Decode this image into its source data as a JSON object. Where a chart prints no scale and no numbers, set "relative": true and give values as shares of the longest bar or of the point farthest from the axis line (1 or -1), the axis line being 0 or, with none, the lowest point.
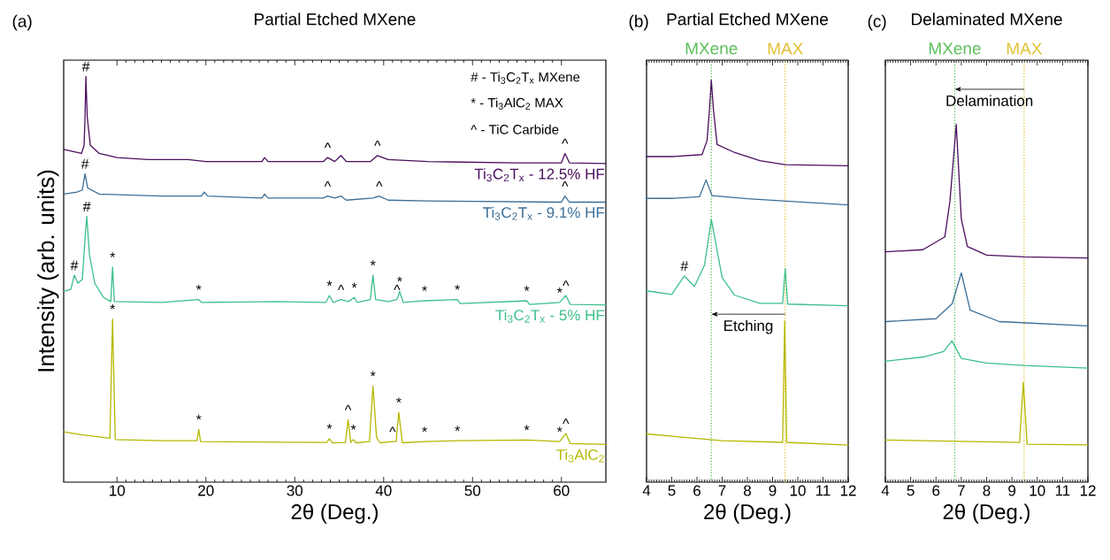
{
  "chart_data": [
    {
      "type": "line",
      "relative": true,
      "title": "Partial Etched MXene",
      "xlabel": "2θ (Deg.)",
      "ylabel": "Intensity (arb. units)",
      "xlim": [
        4,
        65
      ],
      "xticks": [
        10,
        20,
        30,
        40,
        50,
        60
      ],
      "tick_labels": "x",
      "annotations": [
        "(a)",
        "# - Ti$_{3}$C$_{2}$T$_{x}$ MXene",
        "* - Ti$_{3}$AlC$_{2}$ MAX",
        "^ - TiC Carbide",
        {
          "text": "#",
          "x": 6.5,
          "y": 1.0
        },
        {
          "text": "^",
          "x": 33.7,
          "y": 0.8
        },
        {
          "text": "^",
          "x": 39.3,
          "y": 0.805
        },
        {
          "text": "^",
          "x": 60.4,
          "y": 0.81
        },
        {
          "text": "#",
          "x": 6.4,
          "y": 0.76
        },
        {
          "text": "^",
          "x": 33.7,
          "y": 0.705
        },
        {
          "text": "^",
          "x": 39.5,
          "y": 0.705
        },
        {
          "text": "^",
          "x": 60.4,
          "y": 0.705
        },
        {
          "text": "#",
          "x": 5.2,
          "y": 0.51
        },
        {
          "text": "#",
          "x": 6.6,
          "y": 0.655
        },
        {
          "text": "*",
          "x": 9.5,
          "y": 0.53
        },
        {
          "text": "*",
          "x": 19.2,
          "y": 0.45
        },
        {
          "text": "*",
          "x": 33.9,
          "y": 0.46
        },
        {
          "text": "^",
          "x": 35.2,
          "y": 0.45
        },
        {
          "text": "*",
          "x": 36.7,
          "y": 0.455
        },
        {
          "text": "*",
          "x": 38.8,
          "y": 0.51
        },
        {
          "text": "^",
          "x": 41.5,
          "y": 0.45
        },
        {
          "text": "*",
          "x": 41.8,
          "y": 0.47
        },
        {
          "text": "*",
          "x": 44.6,
          "y": 0.447
        },
        {
          "text": "*",
          "x": 48.3,
          "y": 0.45
        },
        {
          "text": "*",
          "x": 56.1,
          "y": 0.447
        },
        {
          "text": "*",
          "x": 59.8,
          "y": 0.443
        },
        {
          "text": "^",
          "x": 60.5,
          "y": 0.46
        },
        {
          "text": "*",
          "x": 9.5,
          "y": 0.402
        },
        {
          "text": "*",
          "x": 19.2,
          "y": 0.13
        },
        {
          "text": "*",
          "x": 33.9,
          "y": 0.107
        },
        {
          "text": "^",
          "x": 36.0,
          "y": 0.154
        },
        {
          "text": "*",
          "x": 36.6,
          "y": 0.105
        },
        {
          "text": "*",
          "x": 38.8,
          "y": 0.237
        },
        {
          "text": "^",
          "x": 41.0,
          "y": 0.1
        },
        {
          "text": "*",
          "x": 41.7,
          "y": 0.172
        },
        {
          "text": "*",
          "x": 44.6,
          "y": 0.1
        },
        {
          "text": "*",
          "x": 48.3,
          "y": 0.102
        },
        {
          "text": "*",
          "x": 56.1,
          "y": 0.104
        },
        {
          "text": "*",
          "x": 59.8,
          "y": 0.1
        },
        {
          "text": "^",
          "x": 60.5,
          "y": 0.12
        }
      ],
      "series": [
        {
          "name": "Ti$_{3}$C$_{2}$T$_{x}$ - 12.5% HF",
          "color": "#4b0f5e",
          "x": [
            4,
            5,
            6.0,
            6.3,
            6.4,
            6.5,
            6.65,
            7,
            8,
            10,
            13.5,
            18,
            20,
            26.3,
            26.6,
            27,
            33.2,
            33.7,
            34.5,
            35.2,
            35.8,
            38.5,
            39.3,
            40.5,
            45,
            55,
            60,
            60.4,
            60.9,
            65
          ],
          "values": [
            0.82,
            0.815,
            0.81,
            0.83,
            0.9,
            1.0,
            0.9,
            0.83,
            0.81,
            0.8,
            0.795,
            0.795,
            0.79,
            0.79,
            0.8,
            0.79,
            0.79,
            0.8,
            0.79,
            0.805,
            0.79,
            0.79,
            0.805,
            0.795,
            0.79,
            0.787,
            0.787,
            0.81,
            0.787,
            0.785
          ]
        },
        {
          "name": "Ti$_{3}$C$_{2}$T$_{x}$ - 9.1% HF",
          "color": "#3c6e96",
          "x": [
            4,
            5.5,
            6.1,
            6.4,
            6.7,
            8,
            15,
            19.5,
            19.8,
            20.2,
            26.3,
            26.6,
            27,
            33.2,
            33.7,
            34.5,
            35.2,
            35.8,
            38.8,
            39.5,
            40.5,
            45,
            60,
            60.4,
            60.9,
            65
          ],
          "values": [
            0.71,
            0.715,
            0.72,
            0.76,
            0.725,
            0.71,
            0.705,
            0.705,
            0.715,
            0.705,
            0.7,
            0.71,
            0.7,
            0.7,
            0.705,
            0.7,
            0.705,
            0.695,
            0.7,
            0.705,
            0.695,
            0.693,
            0.69,
            0.705,
            0.69,
            0.69
          ]
        },
        {
          "name": "Ti$_{3}$C$_{2}$T$_{x}$ - 5% HF",
          "color": "#3cbf8a",
          "x": [
            4,
            4.8,
            5.2,
            5.6,
            6.1,
            6.4,
            6.6,
            6.9,
            7.5,
            8.5,
            9.3,
            9.5,
            9.7,
            15,
            19.2,
            19.5,
            28,
            33.5,
            33.9,
            34.3,
            35.2,
            36,
            36.7,
            37,
            38.5,
            38.8,
            39.1,
            40.5,
            41.5,
            41.8,
            42.2,
            44.6,
            48.3,
            48.6,
            56.1,
            56.4,
            59.8,
            60.5,
            61,
            65
          ],
          "values": [
            0.47,
            0.475,
            0.51,
            0.49,
            0.5,
            0.6,
            0.655,
            0.56,
            0.49,
            0.455,
            0.445,
            0.53,
            0.445,
            0.443,
            0.45,
            0.443,
            0.445,
            0.443,
            0.46,
            0.443,
            0.45,
            0.445,
            0.455,
            0.443,
            0.45,
            0.51,
            0.45,
            0.445,
            0.45,
            0.47,
            0.443,
            0.447,
            0.45,
            0.44,
            0.447,
            0.438,
            0.443,
            0.46,
            0.438,
            0.437
          ]
        },
        {
          "name": "Ti$_{3}$AlC$_{2}$",
          "color": "#b5b800",
          "x": [
            4,
            6,
            9.2,
            9.5,
            9.8,
            15,
            19,
            19.2,
            19.4,
            25,
            33.6,
            33.9,
            34.2,
            35.7,
            36.0,
            36.3,
            36.6,
            36.9,
            38.4,
            38.8,
            39.2,
            39.6,
            41.0,
            41.4,
            41.7,
            42.1,
            44.6,
            48.3,
            56.1,
            59.8,
            60.5,
            61,
            65
          ],
          "values": [
            0.124,
            0.117,
            0.108,
            0.402,
            0.105,
            0.102,
            0.102,
            0.13,
            0.1,
            0.099,
            0.098,
            0.107,
            0.097,
            0.098,
            0.154,
            0.098,
            0.105,
            0.097,
            0.1,
            0.237,
            0.11,
            0.097,
            0.1,
            0.1,
            0.172,
            0.097,
            0.1,
            0.102,
            0.104,
            0.1,
            0.12,
            0.095,
            0.093
          ]
        }
      ]
    },
    {
      "type": "line",
      "relative": true,
      "title": "Partial Etched MXene",
      "xlabel": "2θ (Deg.)",
      "xlim": [
        4,
        12
      ],
      "xticks": [
        4,
        5,
        6,
        7,
        8,
        9,
        10,
        11,
        12
      ],
      "tick_labels": "x",
      "annotations": [
        "(b)",
        {
          "text": "#",
          "x": 5.5,
          "y": 0.513
        },
        "Etching"
      ],
      "ref_lines": [
        {
          "axis": "x",
          "value": 6.57,
          "label": "MXene",
          "color": "#5cbf5c",
          "line_style": "dotted"
        },
        {
          "axis": "x",
          "value": 9.5,
          "label": "MAX",
          "color": "#e0c030",
          "line_style": "dotted"
        }
      ],
      "series": [
        {
          "color": "#4b0f5e",
          "x": [
            4,
            5,
            6.2,
            6.4,
            6.5,
            6.57,
            6.65,
            6.8,
            7.5,
            8.5,
            9.5,
            12
          ],
          "values": [
            0.81,
            0.81,
            0.815,
            0.85,
            0.93,
            1.0,
            0.93,
            0.84,
            0.82,
            0.8,
            0.79,
            0.787
          ]
        },
        {
          "color": "#3c6e96",
          "x": [
            4,
            5,
            6.1,
            6.36,
            6.6,
            8,
            12
          ],
          "values": [
            0.706,
            0.706,
            0.71,
            0.752,
            0.713,
            0.705,
            0.69
          ]
        },
        {
          "color": "#3cbf8a",
          "x": [
            4,
            5.0,
            5.5,
            5.9,
            6.3,
            6.57,
            7.0,
            7.5,
            8.5,
            9.4,
            9.5,
            9.6,
            12
          ],
          "values": [
            0.476,
            0.467,
            0.513,
            0.487,
            0.54,
            0.654,
            0.509,
            0.465,
            0.445,
            0.445,
            0.531,
            0.443,
            0.439
          ]
        },
        {
          "color": "#b5b800",
          "x": [
            4,
            7,
            9.4,
            9.48,
            9.56,
            12
          ],
          "values": [
            0.12,
            0.103,
            0.099,
            0.401,
            0.099,
            0.092
          ]
        }
      ]
    },
    {
      "type": "line",
      "relative": true,
      "title": "Delaminated MXene",
      "xlabel": "2θ (Deg.)",
      "xlim": [
        4,
        12
      ],
      "xticks": [
        4,
        5,
        6,
        7,
        8,
        9,
        10,
        11,
        12
      ],
      "tick_labels": "x",
      "annotations": [
        "(c)",
        "Delamination"
      ],
      "ref_lines": [
        {
          "axis": "x",
          "value": 6.74,
          "label": "MXene",
          "color": "#5cbf5c",
          "line_style": "dotted"
        },
        {
          "axis": "x",
          "value": 9.48,
          "label": "MAX",
          "color": "#e0c030",
          "line_style": "dotted"
        }
      ],
      "series": [
        {
          "color": "#4b0f5e",
          "x": [
            4,
            5.48,
            6.35,
            6.55,
            6.8,
            7.0,
            7.24,
            8,
            9.5,
            12
          ],
          "values": [
            0.644,
            0.65,
            0.686,
            0.785,
            1.0,
            0.736,
            0.659,
            0.635,
            0.63,
            0.627
          ]
        },
        {
          "color": "#3c6e96",
          "x": [
            4,
            6,
            6.64,
            7.0,
            7.35,
            8.5,
            12
          ],
          "values": [
            0.449,
            0.457,
            0.499,
            0.585,
            0.481,
            0.449,
            0.437
          ]
        },
        {
          "color": "#3cbf8a",
          "x": [
            4,
            5.5,
            6.3,
            6.63,
            7.0,
            8,
            9.5,
            12
          ],
          "values": [
            0.338,
            0.35,
            0.365,
            0.395,
            0.346,
            0.333,
            0.326,
            0.319
          ]
        },
        {
          "color": "#b5b800",
          "x": [
            4,
            9.3,
            9.45,
            9.6,
            12
          ],
          "values": [
            0.118,
            0.111,
            0.279,
            0.106,
            0.104
          ]
        }
      ]
    }
  ]
}
